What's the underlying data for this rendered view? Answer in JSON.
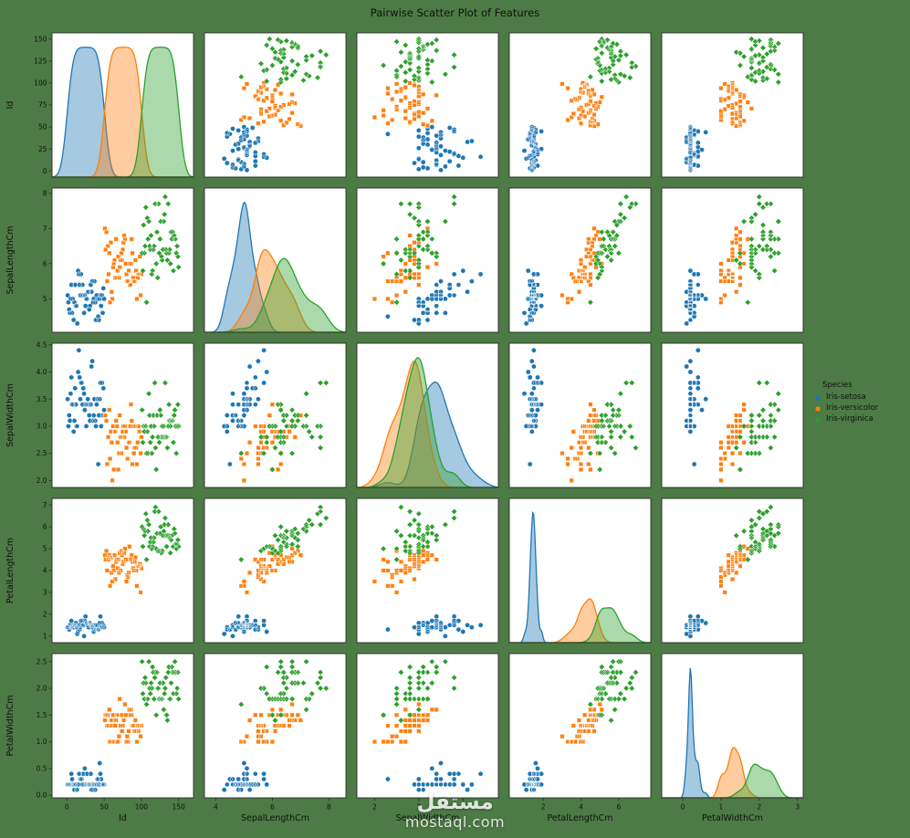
{
  "title": "Pairwise Scatter Plot of Features",
  "legend": {
    "title": "Species"
  },
  "watermark": {
    "arabic": "مستقل",
    "domain": "mostaql.com"
  },
  "colors": {
    "figure_bg": "#4d7b45",
    "plot_bg": "#ffffff",
    "spine": "#2b2b2b",
    "text": "#111111",
    "watermark": "#ffffff"
  },
  "chart_data": {
    "type": "scatter",
    "kind": "pairplot",
    "title": "Pairwise Scatter Plot of Features",
    "grid": "5x5",
    "diagonal": "kde",
    "legend_position": "right",
    "variables": [
      {
        "key": "id",
        "label": "Id",
        "y_range": [
          -7,
          157
        ],
        "y_ticks": [
          0,
          25,
          50,
          75,
          100,
          125,
          150
        ],
        "y_dec": 0,
        "x_range": [
          -20,
          170
        ],
        "x_ticks": [
          0,
          50,
          100,
          150
        ],
        "x_dec": 0
      },
      {
        "key": "sepal_length",
        "label": "SepalLengthCm",
        "y_range": [
          4.05,
          8.15
        ],
        "y_ticks": [
          5,
          6,
          7,
          8
        ],
        "y_dec": 0,
        "x_range": [
          3.6,
          8.6
        ],
        "x_ticks": [
          4,
          6,
          8
        ],
        "x_dec": 0
      },
      {
        "key": "sepal_width",
        "label": "SepalWidthCm",
        "y_range": [
          1.87,
          4.53
        ],
        "y_ticks": [
          2.0,
          2.5,
          3.0,
          3.5,
          4.0,
          4.5
        ],
        "y_dec": 1,
        "x_range": [
          1.6,
          4.8
        ],
        "x_ticks": [
          2,
          3,
          4
        ],
        "x_dec": 0
      },
      {
        "key": "petal_length",
        "label": "PetalLengthCm",
        "y_range": [
          0.7,
          7.3
        ],
        "y_ticks": [
          1,
          2,
          3,
          4,
          5,
          6,
          7
        ],
        "y_dec": 0,
        "x_range": [
          0.2,
          7.7
        ],
        "x_ticks": [
          2,
          4,
          6
        ],
        "x_dec": 0
      },
      {
        "key": "petal_width",
        "label": "PetalWidthCm",
        "y_range": [
          -0.05,
          2.65
        ],
        "y_ticks": [
          0.0,
          0.5,
          1.0,
          1.5,
          2.0,
          2.5
        ],
        "y_dec": 1,
        "x_range": [
          -0.55,
          3.15
        ],
        "x_ticks": [
          0,
          1,
          2,
          3
        ],
        "x_dec": 0
      }
    ],
    "species": [
      {
        "label": "Iris-setosa",
        "color": "#1f77b4",
        "marker": "circle",
        "id_start": 1,
        "sepal_length": [
          5.1,
          4.9,
          4.7,
          4.6,
          5.0,
          5.4,
          4.6,
          5.0,
          4.4,
          4.9,
          5.4,
          4.8,
          4.8,
          4.3,
          5.8,
          5.7,
          5.4,
          5.1,
          5.7,
          5.1,
          5.4,
          5.1,
          4.6,
          5.1,
          4.8,
          5.0,
          5.0,
          5.2,
          5.2,
          4.7,
          4.8,
          5.4,
          5.2,
          5.5,
          4.9,
          5.0,
          5.5,
          4.9,
          4.4,
          5.1,
          5.0,
          4.5,
          4.4,
          5.0,
          5.1,
          4.8,
          5.1,
          4.6,
          5.3,
          5.0
        ],
        "sepal_width": [
          3.5,
          3.0,
          3.2,
          3.1,
          3.6,
          3.9,
          3.4,
          3.4,
          2.9,
          3.1,
          3.7,
          3.4,
          3.0,
          3.0,
          4.0,
          4.4,
          3.9,
          3.5,
          3.8,
          3.8,
          3.4,
          3.7,
          3.6,
          3.3,
          3.4,
          3.0,
          3.4,
          3.5,
          3.4,
          3.2,
          3.1,
          3.4,
          4.1,
          4.2,
          3.1,
          3.2,
          3.5,
          3.1,
          3.0,
          3.4,
          3.5,
          2.3,
          3.2,
          3.5,
          3.8,
          3.0,
          3.8,
          3.2,
          3.7,
          3.3
        ],
        "petal_length": [
          1.4,
          1.4,
          1.3,
          1.5,
          1.4,
          1.7,
          1.4,
          1.5,
          1.4,
          1.5,
          1.5,
          1.6,
          1.4,
          1.1,
          1.2,
          1.5,
          1.3,
          1.4,
          1.7,
          1.5,
          1.7,
          1.5,
          1.0,
          1.7,
          1.9,
          1.6,
          1.6,
          1.5,
          1.4,
          1.6,
          1.6,
          1.5,
          1.5,
          1.4,
          1.5,
          1.2,
          1.3,
          1.5,
          1.3,
          1.5,
          1.3,
          1.3,
          1.3,
          1.6,
          1.9,
          1.4,
          1.6,
          1.4,
          1.5,
          1.4
        ],
        "petal_width": [
          0.2,
          0.2,
          0.2,
          0.2,
          0.2,
          0.4,
          0.3,
          0.2,
          0.2,
          0.1,
          0.2,
          0.2,
          0.1,
          0.1,
          0.2,
          0.4,
          0.4,
          0.3,
          0.3,
          0.3,
          0.2,
          0.4,
          0.2,
          0.5,
          0.2,
          0.2,
          0.4,
          0.2,
          0.2,
          0.2,
          0.2,
          0.4,
          0.1,
          0.2,
          0.1,
          0.2,
          0.2,
          0.1,
          0.2,
          0.2,
          0.3,
          0.3,
          0.2,
          0.6,
          0.4,
          0.3,
          0.2,
          0.2,
          0.2,
          0.2
        ]
      },
      {
        "label": "Iris-versicolor",
        "color": "#ff7f0e",
        "marker": "square",
        "id_start": 51,
        "sepal_length": [
          7.0,
          6.4,
          6.9,
          5.5,
          6.5,
          5.7,
          6.3,
          4.9,
          6.6,
          5.2,
          5.0,
          5.9,
          6.0,
          6.1,
          5.6,
          6.7,
          5.6,
          5.8,
          6.2,
          5.6,
          5.9,
          6.1,
          6.3,
          6.1,
          6.4,
          6.6,
          6.8,
          6.7,
          6.0,
          5.7,
          5.5,
          5.5,
          5.8,
          6.0,
          5.4,
          6.0,
          6.7,
          6.3,
          5.6,
          5.5,
          5.5,
          6.1,
          5.8,
          5.0,
          5.6,
          5.7,
          5.7,
          6.2,
          5.1,
          5.7
        ],
        "sepal_width": [
          3.2,
          3.2,
          3.1,
          2.3,
          2.8,
          2.8,
          3.3,
          2.4,
          2.9,
          2.7,
          2.0,
          3.0,
          2.2,
          2.9,
          2.9,
          3.1,
          3.0,
          2.7,
          2.2,
          2.5,
          3.2,
          2.8,
          2.5,
          2.8,
          2.9,
          3.0,
          2.8,
          3.0,
          2.9,
          2.6,
          2.4,
          2.4,
          2.7,
          2.7,
          3.0,
          3.4,
          3.1,
          2.3,
          3.0,
          2.5,
          2.6,
          3.0,
          2.6,
          2.3,
          2.7,
          3.0,
          2.9,
          2.9,
          2.5,
          2.8
        ],
        "petal_length": [
          4.7,
          4.5,
          4.9,
          4.0,
          4.6,
          4.5,
          4.7,
          3.3,
          4.6,
          3.9,
          3.5,
          4.2,
          4.0,
          4.7,
          3.6,
          4.4,
          4.5,
          4.1,
          4.5,
          3.9,
          4.8,
          4.0,
          4.9,
          4.7,
          4.3,
          4.4,
          4.8,
          5.0,
          4.5,
          3.5,
          3.8,
          3.7,
          3.9,
          5.1,
          4.5,
          4.5,
          4.7,
          4.4,
          4.1,
          4.0,
          4.4,
          4.6,
          4.0,
          3.3,
          4.2,
          4.2,
          4.2,
          4.3,
          3.0,
          4.1
        ],
        "petal_width": [
          1.4,
          1.5,
          1.5,
          1.3,
          1.5,
          1.3,
          1.6,
          1.0,
          1.3,
          1.4,
          1.0,
          1.5,
          1.0,
          1.4,
          1.3,
          1.4,
          1.5,
          1.0,
          1.5,
          1.1,
          1.8,
          1.3,
          1.5,
          1.2,
          1.3,
          1.4,
          1.4,
          1.7,
          1.5,
          1.0,
          1.1,
          1.0,
          1.2,
          1.6,
          1.5,
          1.6,
          1.5,
          1.3,
          1.3,
          1.3,
          1.2,
          1.4,
          1.2,
          1.0,
          1.3,
          1.2,
          1.3,
          1.3,
          1.1,
          1.3
        ]
      },
      {
        "label": "Iris-virginica",
        "color": "#2ca02c",
        "marker": "diamond",
        "id_start": 101,
        "sepal_length": [
          6.3,
          5.8,
          7.1,
          6.3,
          6.5,
          7.6,
          4.9,
          7.3,
          6.7,
          7.2,
          6.5,
          6.4,
          6.8,
          5.7,
          5.8,
          6.4,
          6.5,
          7.7,
          7.7,
          6.0,
          6.9,
          5.6,
          7.7,
          6.3,
          6.7,
          7.2,
          6.2,
          6.1,
          6.4,
          7.2,
          7.4,
          7.9,
          6.4,
          6.3,
          6.1,
          7.7,
          6.3,
          6.4,
          6.0,
          6.9,
          6.7,
          6.9,
          5.8,
          6.8,
          6.7,
          6.7,
          6.3,
          6.5,
          6.2,
          5.9
        ],
        "sepal_width": [
          3.3,
          2.7,
          3.0,
          2.9,
          3.0,
          3.0,
          2.5,
          2.9,
          2.5,
          3.6,
          3.2,
          2.7,
          3.0,
          2.5,
          2.8,
          3.2,
          3.0,
          3.8,
          2.6,
          2.2,
          3.2,
          2.8,
          2.8,
          2.7,
          3.3,
          3.2,
          2.8,
          3.0,
          2.8,
          3.0,
          2.8,
          3.8,
          2.8,
          2.8,
          2.6,
          3.0,
          3.4,
          3.1,
          3.0,
          3.1,
          3.1,
          3.1,
          2.7,
          3.2,
          3.3,
          3.0,
          2.5,
          3.0,
          3.4,
          3.0
        ],
        "petal_length": [
          6.0,
          5.1,
          5.9,
          5.6,
          5.8,
          6.6,
          4.5,
          6.3,
          5.8,
          6.1,
          5.1,
          5.3,
          5.5,
          5.0,
          5.1,
          5.3,
          5.5,
          6.7,
          6.9,
          5.0,
          5.7,
          4.9,
          6.7,
          4.9,
          5.7,
          6.0,
          4.8,
          4.9,
          5.6,
          5.8,
          6.1,
          6.4,
          5.6,
          5.1,
          5.6,
          6.1,
          5.6,
          5.5,
          4.8,
          5.4,
          5.6,
          5.1,
          5.1,
          5.9,
          5.7,
          5.2,
          5.0,
          5.2,
          5.4,
          5.1
        ],
        "petal_width": [
          2.5,
          1.9,
          2.1,
          1.8,
          2.2,
          2.1,
          1.7,
          1.8,
          1.8,
          2.5,
          2.0,
          1.9,
          2.1,
          2.0,
          2.4,
          2.3,
          1.8,
          2.2,
          2.3,
          1.5,
          2.3,
          2.0,
          2.0,
          1.8,
          2.1,
          1.8,
          1.8,
          1.8,
          2.1,
          1.6,
          1.9,
          2.0,
          2.2,
          1.5,
          1.4,
          2.3,
          2.4,
          1.8,
          1.8,
          2.1,
          2.4,
          2.3,
          1.9,
          2.3,
          2.5,
          2.3,
          1.9,
          2.0,
          2.3,
          1.8
        ]
      }
    ]
  }
}
